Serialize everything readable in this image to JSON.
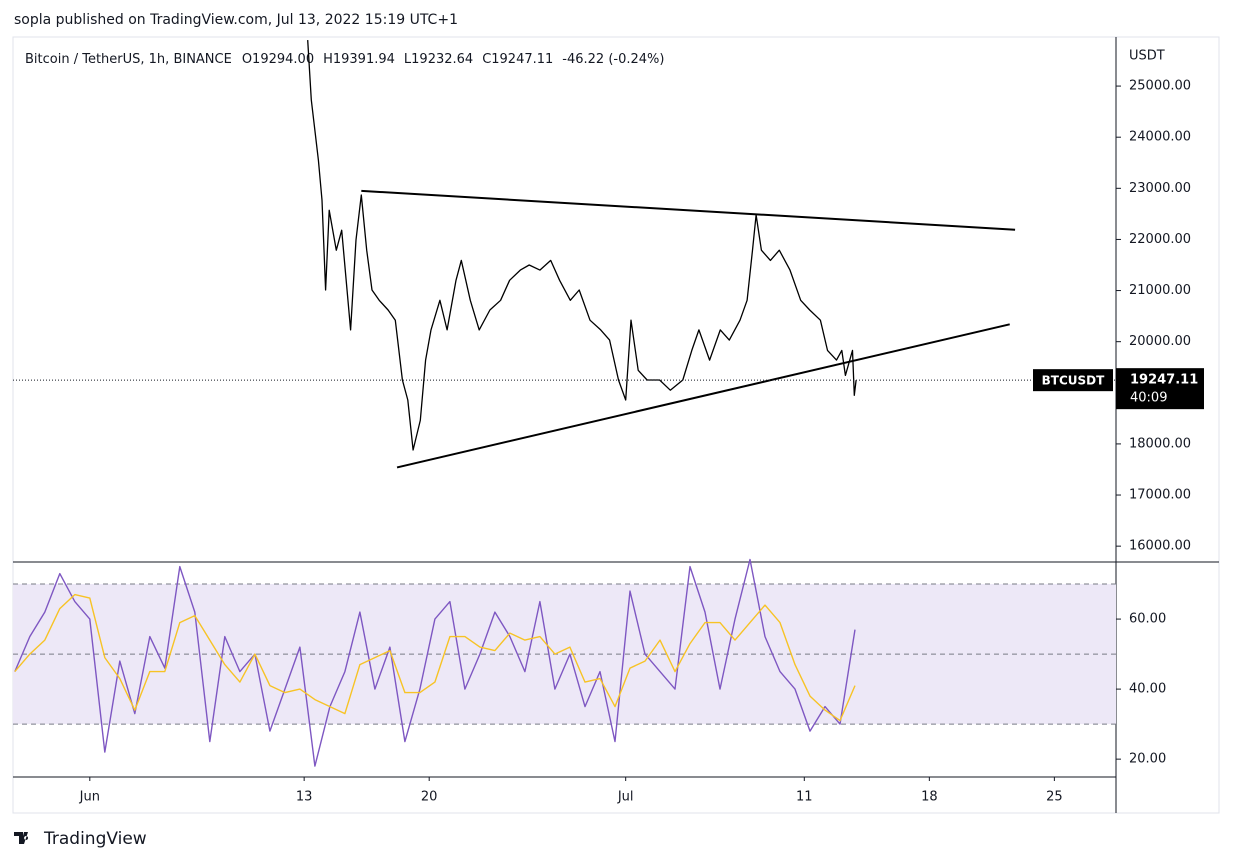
{
  "header": "sopla published on TradingView.com, Jul 13, 2022 15:19 UTC+1",
  "footer": "TradingView",
  "chart_data": [
    {
      "type": "line",
      "title": "Bitcoin / TetherUS, 1h, BINANCE",
      "ohlc": [
        "O19294.00",
        "H19391.94",
        "L19232.64",
        "C19247.11",
        "-46.22 (-0.24%)"
      ],
      "y_axis_label": "USDT",
      "countdown": "40:09",
      "xlim": [
        -3.3,
        58.45
      ],
      "ylim": [
        15690,
        25960
      ],
      "yticks": [
        {
          "value": 16000,
          "label": "16000.00"
        },
        {
          "value": 17000,
          "label": "17000.00"
        },
        {
          "value": 18000,
          "label": "18000.00"
        },
        {
          "value": 20000,
          "label": "20000.00"
        },
        {
          "value": 21000,
          "label": "21000.00"
        },
        {
          "value": 22000,
          "label": "22000.00"
        },
        {
          "value": 23000,
          "label": "23000.00"
        },
        {
          "value": 24000,
          "label": "24000.00"
        },
        {
          "value": 25000,
          "label": "25000.00"
        }
      ],
      "x": [
        13.2,
        13.4,
        13.8,
        14.0,
        14.2,
        14.4,
        14.8,
        15.1,
        15.6,
        15.9,
        16.2,
        16.5,
        16.8,
        17.2,
        17.7,
        18.1,
        18.5,
        18.8,
        19.1,
        19.5,
        19.8,
        20.1,
        20.6,
        21.0,
        21.5,
        21.8,
        22.3,
        22.8,
        23.4,
        24.0,
        24.5,
        25.1,
        25.6,
        26.2,
        26.8,
        27.3,
        27.9,
        28.4,
        29.0,
        29.6,
        30.1,
        30.6,
        31.0,
        31.3,
        31.7,
        32.2,
        32.9,
        33.5,
        34.2,
        34.7,
        35.1,
        35.7,
        36.3,
        36.8,
        37.4,
        37.8,
        38.1,
        38.3,
        38.6,
        39.1,
        39.6,
        40.2,
        40.8,
        41.3,
        41.9,
        42.3,
        42.8,
        43.1,
        43.3,
        43.7,
        43.8,
        43.9
      ],
      "series": [
        {
          "name": "BTCUSDT",
          "color": "#000000",
          "values": [
            25900,
            24730,
            23550,
            22770,
            21010,
            22570,
            21790,
            22180,
            20230,
            21990,
            22870,
            21790,
            21010,
            20810,
            20620,
            20420,
            19250,
            18860,
            17880,
            18460,
            19640,
            20230,
            20810,
            20230,
            21200,
            21590,
            20810,
            20230,
            20620,
            20810,
            21200,
            21400,
            21500,
            21400,
            21590,
            21200,
            20810,
            21010,
            20420,
            20230,
            20030,
            19250,
            18860,
            20420,
            19440,
            19250,
            19250,
            19050,
            19250,
            19830,
            20230,
            19640,
            20230,
            20030,
            20420,
            20810,
            21790,
            22480,
            21790,
            21590,
            21790,
            21400,
            20810,
            20620,
            20420,
            19830,
            19640,
            19830,
            19340,
            19830,
            18950,
            19247.11
          ]
        }
      ],
      "trendlines": [
        {
          "x": [
            16.2,
            52.8
          ],
          "values": [
            22950,
            22190
          ]
        },
        {
          "x": [
            18.2,
            52.5
          ],
          "values": [
            17540,
            20340
          ]
        }
      ]
    },
    {
      "type": "line",
      "xlim": [
        -3.3,
        58.45
      ],
      "ylim": [
        14.9,
        76.3
      ],
      "yticks": [
        {
          "value": 20,
          "label": "20.00"
        },
        {
          "value": 40,
          "label": "40.00"
        },
        {
          "value": 60,
          "label": "60.00"
        }
      ],
      "bands": [
        30,
        50,
        70
      ],
      "band_color": "#ede8f7",
      "xticks": [
        {
          "value": 1,
          "label": "Jun"
        },
        13,
        20,
        {
          "value": 31,
          "label": "Jul"
        },
        {
          "value": 41,
          "label": "11"
        },
        {
          "value": 48,
          "label": "18"
        },
        {
          "value": 55,
          "label": "25"
        }
      ],
      "x": [
        -3.2,
        -2.36,
        -1.52,
        -0.68,
        0.16,
        1,
        1.84,
        2.68,
        3.52,
        4.36,
        5.2,
        6.04,
        6.88,
        7.72,
        8.56,
        9.4,
        10.24,
        11.08,
        11.92,
        12.76,
        13.6,
        14.44,
        15.28,
        16.12,
        16.96,
        17.8,
        18.64,
        19.48,
        20.32,
        21.16,
        22,
        22.84,
        23.68,
        24.52,
        25.36,
        26.2,
        27.04,
        27.88,
        28.72,
        29.56,
        30.4,
        31.24,
        32.08,
        32.92,
        33.76,
        34.6,
        35.44,
        36.28,
        37.12,
        37.96,
        38.8,
        39.64,
        40.48,
        41.32,
        42.16,
        43,
        43.84
      ],
      "series": [
        {
          "color": "#7e57c2",
          "values": [
            45,
            55,
            62,
            73,
            65,
            60,
            22,
            48,
            33,
            55,
            46,
            75,
            62,
            25,
            55,
            45,
            50,
            28,
            40,
            52,
            18,
            35,
            45,
            62,
            40,
            52,
            25,
            40,
            60,
            65,
            40,
            50,
            62,
            55,
            45,
            65,
            40,
            50,
            35,
            45,
            25,
            68,
            50,
            45,
            40,
            75,
            62,
            40,
            60,
            77,
            55,
            45,
            40,
            28,
            35,
            30,
            57
          ]
        },
        {
          "color": "#f7c325",
          "values": [
            45,
            50,
            54,
            63,
            67,
            66,
            49,
            43,
            34,
            45,
            45,
            59,
            61,
            54,
            47,
            42,
            50,
            41,
            39,
            40,
            37,
            35,
            33,
            47,
            49,
            51,
            39,
            39,
            42,
            55,
            55,
            52,
            51,
            56,
            54,
            55,
            50,
            52,
            42,
            43,
            35,
            46,
            48,
            54,
            45,
            53,
            59,
            59,
            54,
            59,
            64,
            59,
            47,
            38,
            34,
            31,
            41
          ]
        }
      ]
    }
  ]
}
